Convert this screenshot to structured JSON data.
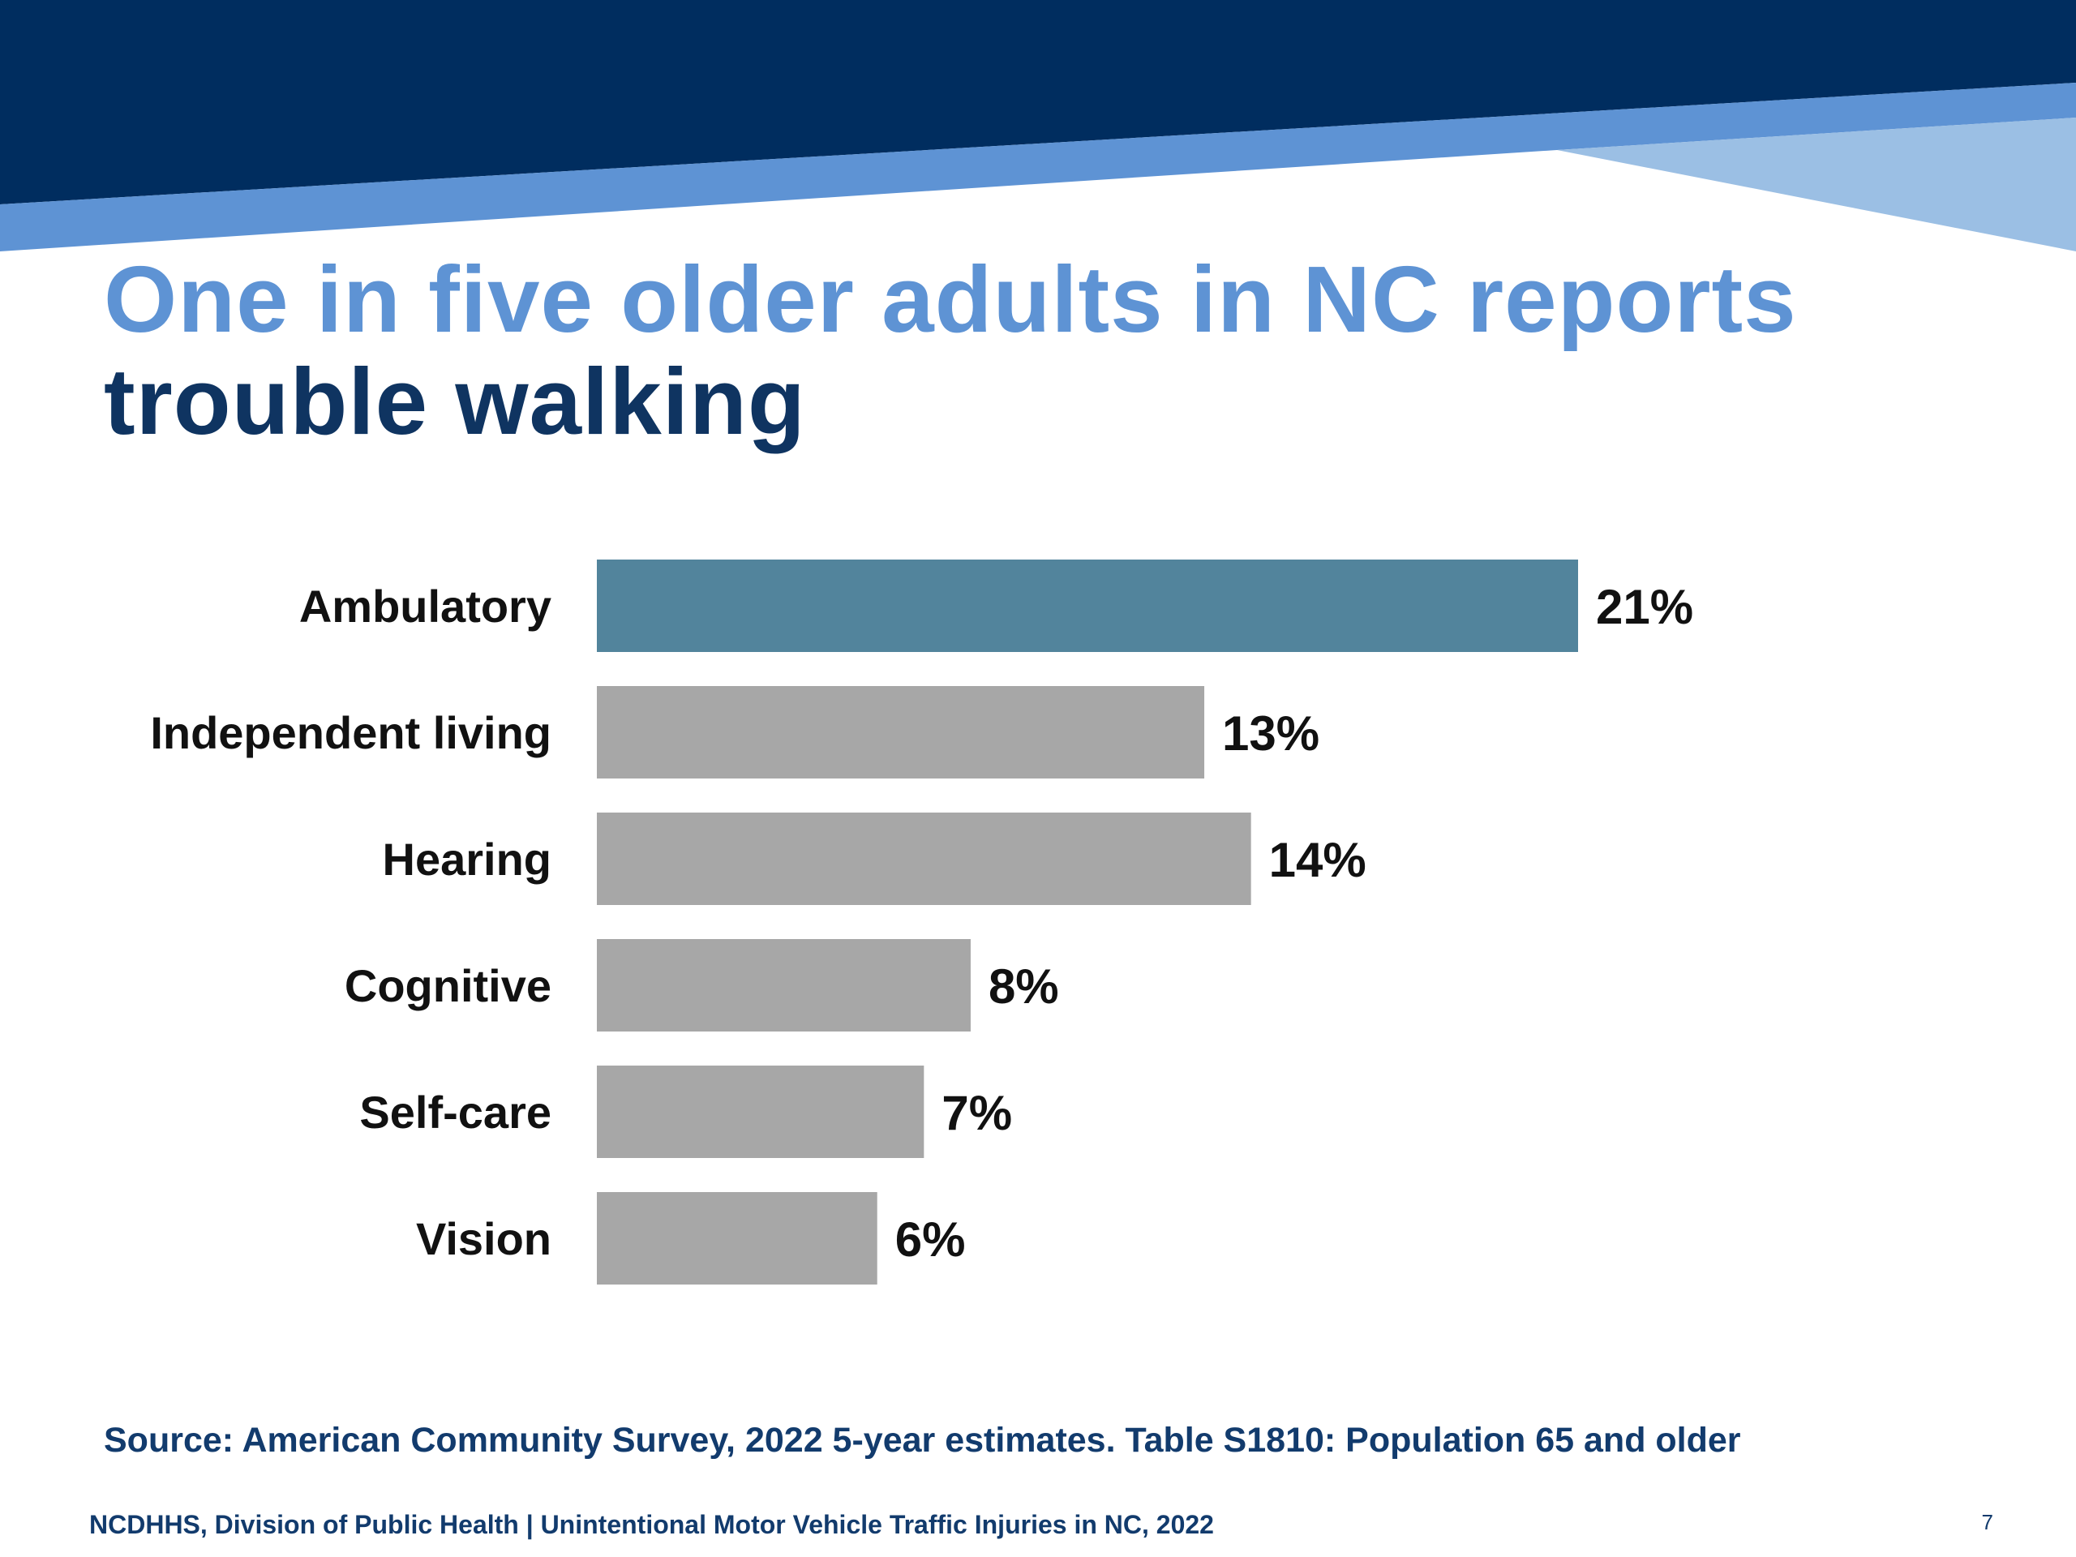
{
  "slide": {
    "title_line1": "One in five older adults in NC reports",
    "title_line2": "trouble walking",
    "source": "Source: American Community Survey, 2022 5-year estimates. Table S1810: Population 65 and older",
    "footer": "NCDHHS, Division of Public Health | Unintentional Motor Vehicle Traffic Injuries in NC, 2022",
    "page_number": "7"
  },
  "colors": {
    "header_dark": "#002d5f",
    "header_mid": "#5e93d4",
    "header_light": "#9bbfe4",
    "highlight_bar": "#52849c",
    "default_bar": "#a7a7a7"
  },
  "chart_data": {
    "type": "bar",
    "orientation": "horizontal",
    "categories": [
      "Ambulatory",
      "Independent living",
      "Hearing",
      "Cognitive",
      "Self-care",
      "Vision"
    ],
    "values": [
      21,
      13,
      14,
      8,
      7,
      6
    ],
    "value_labels": [
      "21%",
      "13%",
      "14%",
      "8%",
      "7%",
      "6%"
    ],
    "highlighted": [
      "Ambulatory"
    ],
    "xlim": [
      0,
      21
    ],
    "grid": false
  }
}
